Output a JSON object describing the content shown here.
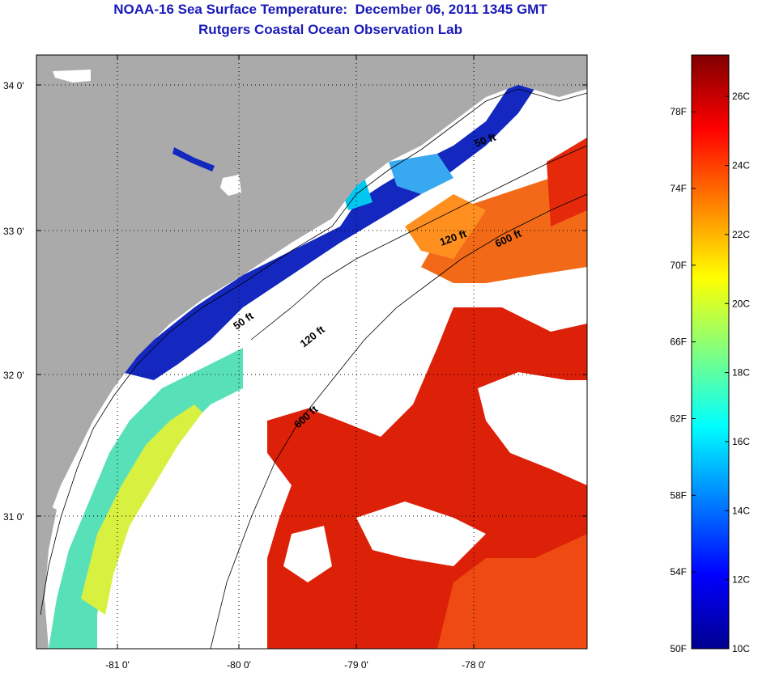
{
  "title": {
    "line1": "NOAA-16 Sea Surface Temperature:  December 06, 2011 1345 GMT",
    "line2": "Rutgers Coastal Ocean Observation Lab"
  },
  "map": {
    "lon_range": [
      -81.65,
      -77.1
    ],
    "lat_range": [
      30.05,
      34.25
    ],
    "lat_ticks": [
      {
        "value": 34,
        "label": "34 0'"
      },
      {
        "value": 33,
        "label": "33 0'"
      },
      {
        "value": 32,
        "label": "32 0'"
      },
      {
        "value": 31,
        "label": "31 0'"
      }
    ],
    "lon_ticks": [
      {
        "value": -81,
        "label": "-81 0'"
      },
      {
        "value": -80,
        "label": "-80 0'"
      },
      {
        "value": -79,
        "label": "-79 0'"
      },
      {
        "value": -78,
        "label": "-78 0'"
      }
    ],
    "contour_labels": [
      "50 ft",
      "120 ft",
      "600 ft",
      "50 ft",
      "120 ft",
      "600 ft"
    ]
  },
  "colorbar": {
    "fahrenheit": [
      "78F",
      "74F",
      "70F",
      "66F",
      "62F",
      "58F",
      "54F",
      "50F"
    ],
    "celsius": [
      "26C",
      "24C",
      "22C",
      "20C",
      "18C",
      "16C",
      "14C",
      "12C",
      "10C"
    ],
    "min_c": 10,
    "max_c": 27.2,
    "colors": [
      "#00008f",
      "#0000ff",
      "#0080ff",
      "#00ffff",
      "#80ff80",
      "#ffff00",
      "#ff8000",
      "#ff0000",
      "#800000"
    ]
  },
  "colors": {
    "land": "#aaaaaa",
    "title": "#1a1ab8",
    "gulf_stream": "#dd1f08",
    "offshore": "#ee4010",
    "nearshore_cold": "#1428c0"
  }
}
